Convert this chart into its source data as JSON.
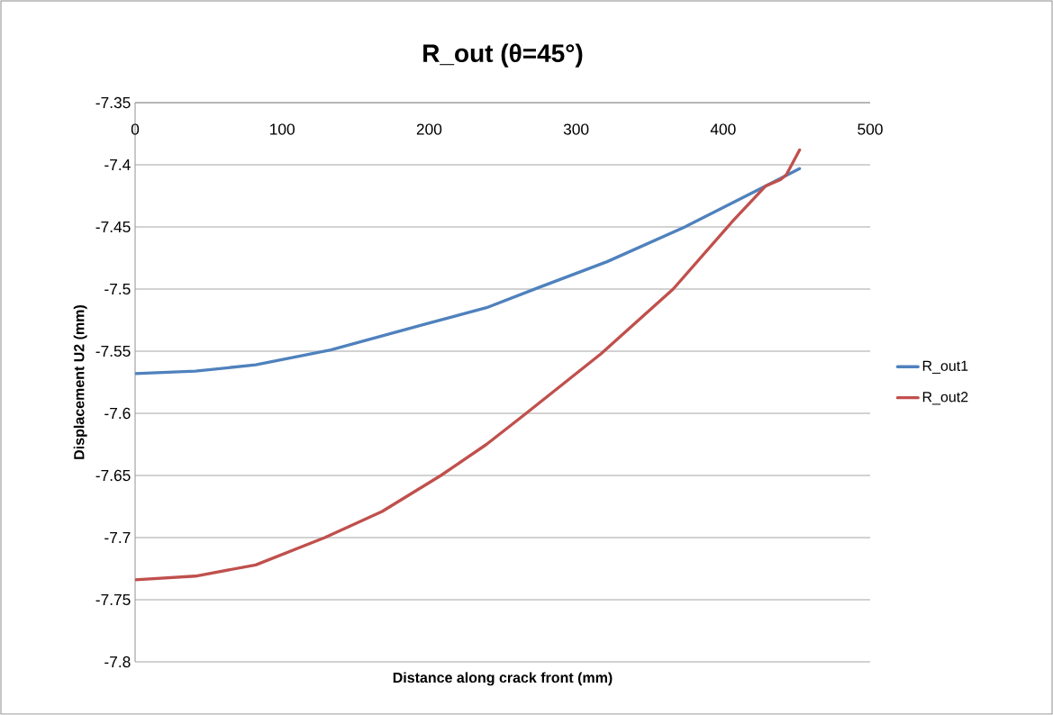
{
  "chart_data": {
    "type": "line",
    "title": "R_out (θ=45°)",
    "xlabel": "Distance along crack front (mm)",
    "ylabel": "Displacement U2 (mm)",
    "xlim": [
      0,
      500
    ],
    "xticks": [
      0,
      100,
      200,
      300,
      400,
      500
    ],
    "ylim": [
      -7.8,
      -7.35
    ],
    "yticks": [
      -7.8,
      -7.75,
      -7.7,
      -7.65,
      -7.6,
      -7.55,
      -7.5,
      -7.45,
      -7.4,
      -7.35
    ],
    "grid": "y",
    "legend": "right",
    "marker": "none",
    "line_style": "solid",
    "series": [
      {
        "name": "R_out1",
        "color": "#4f81bd",
        "x": [
          0,
          41,
          82,
          133,
          198,
          239,
          274,
          321,
          374,
          429,
          452
        ],
        "values": [
          -7.568,
          -7.566,
          -7.561,
          -7.549,
          -7.528,
          -7.515,
          -7.499,
          -7.478,
          -7.45,
          -7.417,
          -7.403
        ]
      },
      {
        "name": "R_out2",
        "color": "#c0504d",
        "x": [
          0,
          41,
          82,
          129,
          168,
          208,
          239,
          266,
          317,
          366,
          406,
          429,
          439,
          443,
          452
        ],
        "values": [
          -7.734,
          -7.731,
          -7.722,
          -7.7,
          -7.679,
          -7.65,
          -7.625,
          -7.6,
          -7.552,
          -7.5,
          -7.446,
          -7.417,
          -7.412,
          -7.408,
          -7.388
        ]
      }
    ]
  }
}
